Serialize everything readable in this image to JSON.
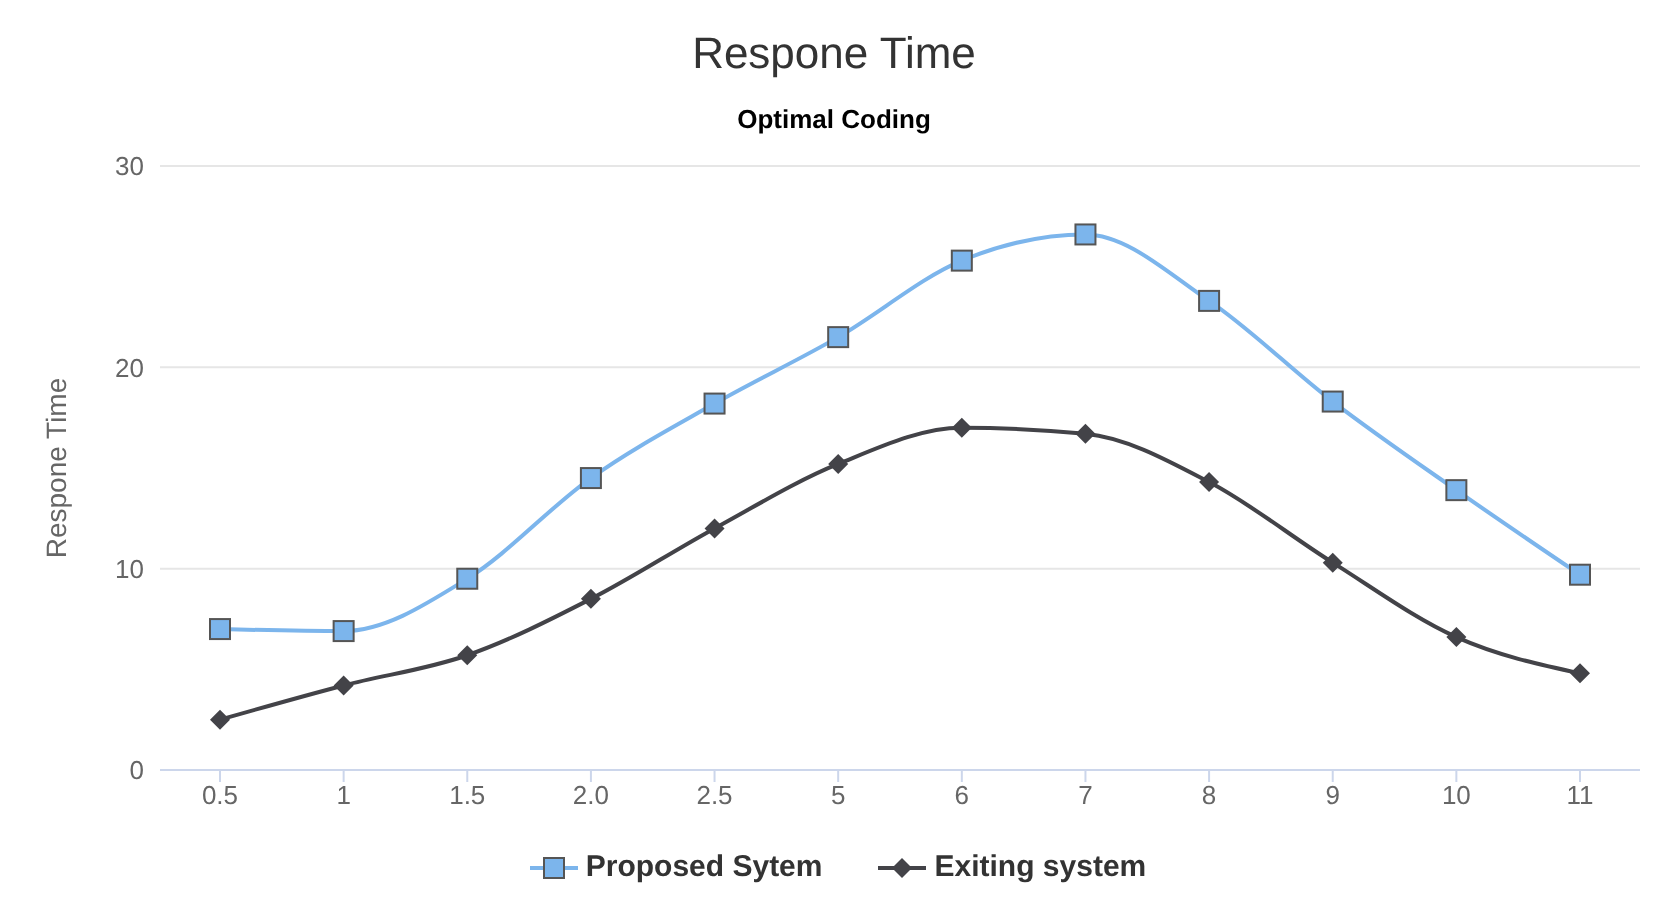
{
  "chart_data": {
    "type": "line",
    "title": "Respone Time",
    "subtitle": "Optimal Coding",
    "ylabel": "Respone Time",
    "categories": [
      "0.5",
      "1",
      "1.5",
      "2.0",
      "2.5",
      "5",
      "6",
      "7",
      "8",
      "9",
      "10",
      "11"
    ],
    "series": [
      {
        "name": "Proposed Sytem",
        "color": "#7cb5ec",
        "marker": "square",
        "values": [
          7.0,
          6.9,
          9.5,
          14.5,
          18.2,
          21.5,
          25.3,
          26.6,
          23.3,
          18.3,
          13.9,
          9.7
        ]
      },
      {
        "name": "Exiting system",
        "color": "#434348",
        "marker": "diamond",
        "values": [
          2.5,
          4.2,
          5.7,
          8.5,
          12.0,
          15.2,
          17.0,
          16.7,
          14.3,
          10.3,
          6.6,
          4.8
        ]
      }
    ],
    "ylim": [
      0,
      30
    ],
    "yticks": [
      0,
      10,
      20,
      30
    ],
    "grid": "y",
    "legend": "bottom"
  }
}
